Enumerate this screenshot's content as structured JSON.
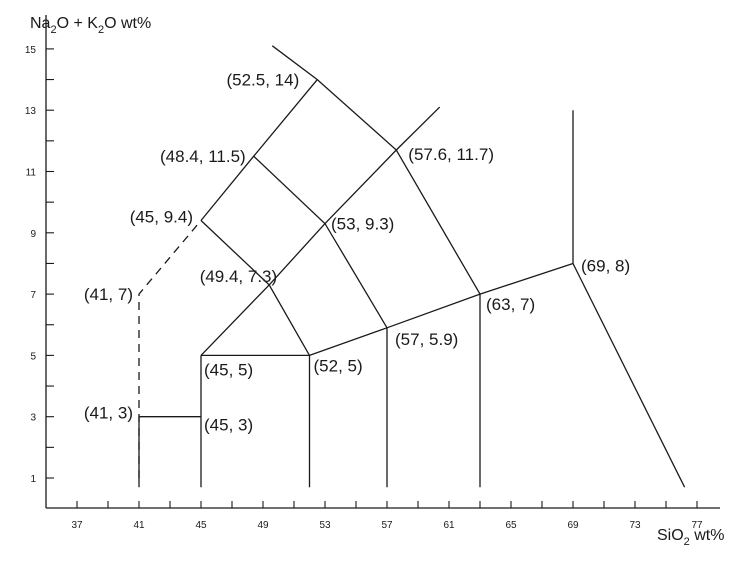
{
  "chart_data": {
    "type": "line",
    "xlabel": {
      "main": "SiO",
      "sub": "2",
      "tail": " wt%"
    },
    "ylabel": {
      "a": "Na",
      "a_sub": "2",
      "b": "O + K",
      "b_sub": "2",
      "c": "O wt%"
    },
    "xlim": [
      35,
      79
    ],
    "ylim": [
      0,
      15.8
    ],
    "x_ticks": [
      37,
      41,
      45,
      49,
      53,
      57,
      61,
      65,
      69,
      73,
      77
    ],
    "y_ticks": [
      1,
      3,
      5,
      7,
      9,
      11,
      13,
      15
    ],
    "lines": [
      {
        "dashed": false,
        "points": [
          [
            41,
            0.7
          ],
          [
            41,
            3
          ]
        ]
      },
      {
        "dashed": false,
        "points": [
          [
            41,
            3
          ],
          [
            45,
            3
          ]
        ]
      },
      {
        "dashed": false,
        "points": [
          [
            45,
            0.7
          ],
          [
            45,
            5
          ]
        ]
      },
      {
        "dashed": false,
        "points": [
          [
            45,
            5
          ],
          [
            52,
            5
          ]
        ]
      },
      {
        "dashed": false,
        "points": [
          [
            52,
            0.7
          ],
          [
            52,
            5
          ]
        ]
      },
      {
        "dashed": false,
        "points": [
          [
            52,
            5
          ],
          [
            57,
            5.9
          ],
          [
            63,
            7
          ],
          [
            69,
            8
          ]
        ]
      },
      {
        "dashed": false,
        "points": [
          [
            57,
            0.7
          ],
          [
            57,
            5.9
          ]
        ]
      },
      {
        "dashed": false,
        "points": [
          [
            63,
            0.7
          ],
          [
            63,
            7
          ]
        ]
      },
      {
        "dashed": false,
        "points": [
          [
            69,
            13
          ],
          [
            69,
            8
          ]
        ]
      },
      {
        "dashed": false,
        "points": [
          [
            69,
            8
          ],
          [
            76.2,
            0.7
          ]
        ]
      },
      {
        "dashed": false,
        "points": [
          [
            45,
            5
          ],
          [
            49.4,
            7.3
          ],
          [
            53,
            9.3
          ],
          [
            57.6,
            11.7
          ],
          [
            60.4,
            13.1
          ]
        ]
      },
      {
        "dashed": false,
        "points": [
          [
            52,
            5
          ],
          [
            49.4,
            7.3
          ],
          [
            45,
            9.4
          ]
        ]
      },
      {
        "dashed": false,
        "points": [
          [
            57,
            5.9
          ],
          [
            53,
            9.3
          ],
          [
            48.4,
            11.5
          ]
        ]
      },
      {
        "dashed": false,
        "points": [
          [
            63,
            7
          ],
          [
            57.6,
            11.7
          ],
          [
            52.5,
            14
          ],
          [
            49.6,
            15.1
          ]
        ]
      },
      {
        "dashed": false,
        "points": [
          [
            45,
            9.4
          ],
          [
            48.4,
            11.5
          ],
          [
            52.5,
            14
          ]
        ]
      },
      {
        "dashed": true,
        "points": [
          [
            41,
            1.0
          ],
          [
            41,
            7
          ],
          [
            45,
            9.4
          ]
        ]
      }
    ],
    "annotations": [
      {
        "text": "(52.5, 14)",
        "x": 52.5,
        "y": 14,
        "anchor": "end",
        "dx": -18,
        "dy": 6
      },
      {
        "text": "(48.4, 11.5)",
        "x": 48.4,
        "y": 11.5,
        "anchor": "end",
        "dx": -8,
        "dy": 6
      },
      {
        "text": "(57.6, 11.7)",
        "x": 57.6,
        "y": 11.7,
        "anchor": "start",
        "dx": 12,
        "dy": 10
      },
      {
        "text": "(45, 9.4)",
        "x": 45,
        "y": 9.4,
        "anchor": "end",
        "dx": -8,
        "dy": 2
      },
      {
        "text": "(53, 9.3)",
        "x": 53,
        "y": 9.3,
        "anchor": "start",
        "dx": 6,
        "dy": 6
      },
      {
        "text": "(41, 7)",
        "x": 41,
        "y": 7,
        "anchor": "end",
        "dx": -6,
        "dy": 6
      },
      {
        "text": "(49.4, 7.3)",
        "x": 49.4,
        "y": 7.3,
        "anchor": "end",
        "dx": 8,
        "dy": -3
      },
      {
        "text": "(69, 8)",
        "x": 69,
        "y": 8,
        "anchor": "start",
        "dx": 8,
        "dy": 8
      },
      {
        "text": "(63, 7)",
        "x": 63,
        "y": 7,
        "anchor": "start",
        "dx": 6,
        "dy": 16
      },
      {
        "text": "(57, 5.9)",
        "x": 57,
        "y": 5.9,
        "anchor": "start",
        "dx": 8,
        "dy": 17
      },
      {
        "text": "(45, 5)",
        "x": 45,
        "y": 5,
        "anchor": "start",
        "dx": 3,
        "dy": 20
      },
      {
        "text": "(52, 5)",
        "x": 52,
        "y": 5,
        "anchor": "start",
        "dx": 4,
        "dy": 16
      },
      {
        "text": "(41, 3)",
        "x": 41,
        "y": 3,
        "anchor": "end",
        "dx": -6,
        "dy": 2
      },
      {
        "text": "(45, 3)",
        "x": 45,
        "y": 3,
        "anchor": "start",
        "dx": 3,
        "dy": 14
      }
    ]
  }
}
